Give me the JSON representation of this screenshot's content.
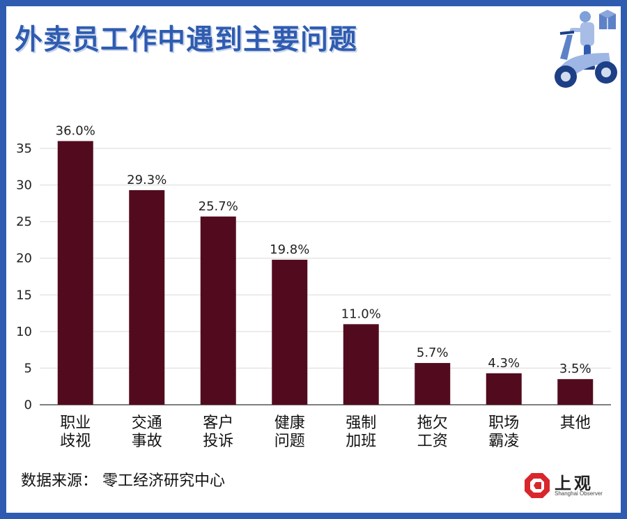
{
  "title": "外卖员工作中遇到主要问题",
  "source": "数据来源：  零工经济研究中心",
  "logo": {
    "name": "上观",
    "subtitle": "Shanghai Observer"
  },
  "colors": {
    "bar": "#520b1e",
    "frame": "#2f5cb0",
    "title": "#2f5cb0",
    "grid": "#d9d9d9",
    "logo_red": "#d8262c"
  },
  "icons": {
    "illustration": "delivery-scooter-icon",
    "logo_mark": "shanghai-observer-logo-icon"
  },
  "chart_data": {
    "type": "bar",
    "title": "外卖员工作中遇到主要问题",
    "xlabel": "",
    "ylabel": "",
    "ylim": [
      0,
      35
    ],
    "yticks": [
      0,
      5,
      10,
      15,
      20,
      25,
      30,
      35
    ],
    "grid": true,
    "categories": [
      [
        "职业",
        "歧视"
      ],
      [
        "交通",
        "事故"
      ],
      [
        "客户",
        "投诉"
      ],
      [
        "健康",
        "问题"
      ],
      [
        "强制",
        "加班"
      ],
      [
        "拖欠",
        "工资"
      ],
      [
        "职场",
        "霸凌"
      ],
      [
        "其他"
      ]
    ],
    "values": [
      36.0,
      29.3,
      25.7,
      19.8,
      11.0,
      5.7,
      4.3,
      3.5
    ],
    "data_labels": [
      "36.0%",
      "29.3%",
      "25.7%",
      "19.8%",
      "11.0%",
      "5.7%",
      "4.3%",
      "3.5%"
    ]
  }
}
